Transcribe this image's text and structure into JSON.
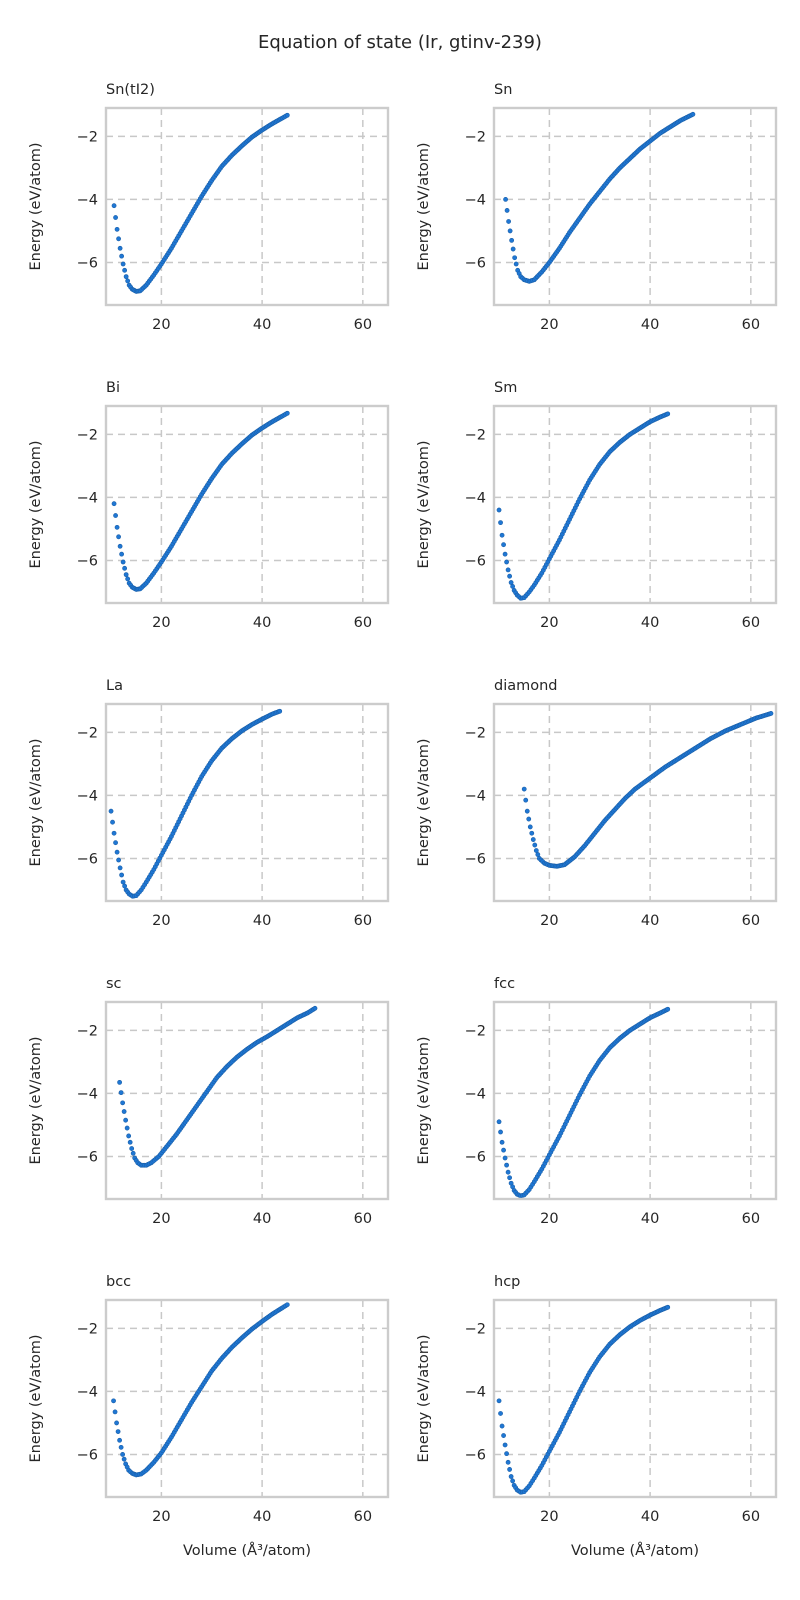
{
  "figure": {
    "suptitle": "Equation of state (Ir, gtinv-239)",
    "xlabel": "Volume (Å³/atom)",
    "ylabel": "Energy (eV/atom)"
  },
  "chart_data": [
    {
      "type": "scatter",
      "title": "Sn(tI2)",
      "xlim": [
        9,
        65
      ],
      "ylim": [
        -7.35,
        -1.1
      ],
      "xticks": [
        "20",
        "40",
        "60"
      ],
      "yticks": [
        "−6",
        "−4",
        "−2"
      ],
      "grid": true,
      "xlabel": "",
      "ylabel": "Energy (eV/atom)",
      "key_points": [
        [
          10.6,
          -4.2
        ],
        [
          11.2,
          -4.95
        ],
        [
          11.8,
          -5.55
        ],
        [
          12.4,
          -6.05
        ],
        [
          13.0,
          -6.45
        ],
        [
          13.6,
          -6.72
        ],
        [
          14.2,
          -6.85
        ],
        [
          15.0,
          -6.92
        ],
        [
          15.8,
          -6.9
        ],
        [
          17.0,
          -6.72
        ],
        [
          18.5,
          -6.4
        ],
        [
          20.0,
          -6.05
        ],
        [
          22.0,
          -5.55
        ],
        [
          24.0,
          -5.0
        ],
        [
          26.0,
          -4.45
        ],
        [
          28.0,
          -3.9
        ],
        [
          30.0,
          -3.4
        ],
        [
          32.0,
          -2.95
        ],
        [
          34.0,
          -2.6
        ],
        [
          36.0,
          -2.3
        ],
        [
          38.0,
          -2.02
        ],
        [
          40.0,
          -1.8
        ],
        [
          42.0,
          -1.6
        ],
        [
          44.0,
          -1.42
        ],
        [
          45.0,
          -1.33
        ]
      ]
    },
    {
      "type": "scatter",
      "title": "Sn",
      "xlim": [
        9,
        65
      ],
      "ylim": [
        -7.35,
        -1.1
      ],
      "xticks": [
        "20",
        "40",
        "60"
      ],
      "yticks": [
        "−6",
        "−4",
        "−2"
      ],
      "grid": true,
      "xlabel": "",
      "ylabel": "Energy (eV/atom)",
      "key_points": [
        [
          11.3,
          -4.0
        ],
        [
          11.9,
          -4.7
        ],
        [
          12.5,
          -5.3
        ],
        [
          13.1,
          -5.85
        ],
        [
          13.7,
          -6.25
        ],
        [
          14.3,
          -6.45
        ],
        [
          15.0,
          -6.55
        ],
        [
          16.0,
          -6.6
        ],
        [
          17.0,
          -6.55
        ],
        [
          18.5,
          -6.3
        ],
        [
          20.0,
          -6.0
        ],
        [
          22.0,
          -5.55
        ],
        [
          24.0,
          -5.05
        ],
        [
          26.0,
          -4.6
        ],
        [
          28.0,
          -4.15
        ],
        [
          30.0,
          -3.75
        ],
        [
          32.0,
          -3.35
        ],
        [
          34.0,
          -3.0
        ],
        [
          36.0,
          -2.7
        ],
        [
          38.0,
          -2.4
        ],
        [
          40.0,
          -2.15
        ],
        [
          42.0,
          -1.9
        ],
        [
          44.0,
          -1.7
        ],
        [
          46.0,
          -1.5
        ],
        [
          48.5,
          -1.3
        ]
      ]
    },
    {
      "type": "scatter",
      "title": "Bi",
      "xlim": [
        9,
        65
      ],
      "ylim": [
        -7.35,
        -1.1
      ],
      "xticks": [
        "20",
        "40",
        "60"
      ],
      "yticks": [
        "−6",
        "−4",
        "−2"
      ],
      "grid": true,
      "xlabel": "",
      "ylabel": "Energy (eV/atom)",
      "key_points": [
        [
          10.6,
          -4.2
        ],
        [
          11.2,
          -4.95
        ],
        [
          11.8,
          -5.55
        ],
        [
          12.4,
          -6.05
        ],
        [
          13.0,
          -6.45
        ],
        [
          13.6,
          -6.72
        ],
        [
          14.2,
          -6.85
        ],
        [
          15.0,
          -6.92
        ],
        [
          15.8,
          -6.9
        ],
        [
          17.0,
          -6.72
        ],
        [
          18.5,
          -6.4
        ],
        [
          20.0,
          -6.05
        ],
        [
          22.0,
          -5.55
        ],
        [
          24.0,
          -5.0
        ],
        [
          26.0,
          -4.45
        ],
        [
          28.0,
          -3.9
        ],
        [
          30.0,
          -3.4
        ],
        [
          32.0,
          -2.95
        ],
        [
          34.0,
          -2.6
        ],
        [
          36.0,
          -2.3
        ],
        [
          38.0,
          -2.02
        ],
        [
          40.0,
          -1.8
        ],
        [
          42.0,
          -1.6
        ],
        [
          44.0,
          -1.42
        ],
        [
          45.0,
          -1.33
        ]
      ]
    },
    {
      "type": "scatter",
      "title": "Sm",
      "xlim": [
        9,
        65
      ],
      "ylim": [
        -7.35,
        -1.1
      ],
      "xticks": [
        "20",
        "40",
        "60"
      ],
      "yticks": [
        "−6",
        "−4",
        "−2"
      ],
      "grid": true,
      "xlabel": "",
      "ylabel": "Energy (eV/atom)",
      "key_points": [
        [
          10.0,
          -4.4
        ],
        [
          10.6,
          -5.2
        ],
        [
          11.2,
          -5.8
        ],
        [
          11.8,
          -6.3
        ],
        [
          12.4,
          -6.7
        ],
        [
          13.0,
          -6.95
        ],
        [
          13.6,
          -7.1
        ],
        [
          14.3,
          -7.2
        ],
        [
          15.0,
          -7.18
        ],
        [
          16.0,
          -7.0
        ],
        [
          17.0,
          -6.78
        ],
        [
          18.5,
          -6.4
        ],
        [
          20.0,
          -5.95
        ],
        [
          22.0,
          -5.35
        ],
        [
          24.0,
          -4.7
        ],
        [
          26.0,
          -4.05
        ],
        [
          28.0,
          -3.45
        ],
        [
          30.0,
          -2.95
        ],
        [
          32.0,
          -2.55
        ],
        [
          34.0,
          -2.25
        ],
        [
          36.0,
          -2.0
        ],
        [
          38.0,
          -1.8
        ],
        [
          40.0,
          -1.6
        ],
        [
          42.0,
          -1.45
        ],
        [
          43.5,
          -1.35
        ]
      ]
    },
    {
      "type": "scatter",
      "title": "La",
      "xlim": [
        9,
        65
      ],
      "ylim": [
        -7.35,
        -1.1
      ],
      "xticks": [
        "20",
        "40",
        "60"
      ],
      "yticks": [
        "−6",
        "−4",
        "−2"
      ],
      "grid": true,
      "xlabel": "",
      "ylabel": "Energy (eV/atom)",
      "key_points": [
        [
          10.0,
          -4.5
        ],
        [
          10.6,
          -5.2
        ],
        [
          11.2,
          -5.8
        ],
        [
          11.8,
          -6.3
        ],
        [
          12.4,
          -6.75
        ],
        [
          13.0,
          -7.0
        ],
        [
          13.6,
          -7.13
        ],
        [
          14.3,
          -7.2
        ],
        [
          15.0,
          -7.18
        ],
        [
          16.0,
          -7.0
        ],
        [
          17.0,
          -6.75
        ],
        [
          18.5,
          -6.35
        ],
        [
          20.0,
          -5.9
        ],
        [
          22.0,
          -5.3
        ],
        [
          24.0,
          -4.65
        ],
        [
          26.0,
          -4.0
        ],
        [
          28.0,
          -3.4
        ],
        [
          30.0,
          -2.9
        ],
        [
          32.0,
          -2.5
        ],
        [
          34.0,
          -2.2
        ],
        [
          36.0,
          -1.95
        ],
        [
          38.0,
          -1.75
        ],
        [
          40.0,
          -1.58
        ],
        [
          42.0,
          -1.42
        ],
        [
          43.5,
          -1.33
        ]
      ]
    },
    {
      "type": "scatter",
      "title": "diamond",
      "xlim": [
        9,
        65
      ],
      "ylim": [
        -7.35,
        -1.1
      ],
      "xticks": [
        "20",
        "40",
        "60"
      ],
      "yticks": [
        "−6",
        "−4",
        "−2"
      ],
      "grid": true,
      "xlabel": "",
      "ylabel": "Energy (eV/atom)",
      "key_points": [
        [
          15.0,
          -3.8
        ],
        [
          15.6,
          -4.5
        ],
        [
          16.2,
          -5.0
        ],
        [
          16.8,
          -5.4
        ],
        [
          17.4,
          -5.75
        ],
        [
          18.0,
          -6.0
        ],
        [
          19.0,
          -6.15
        ],
        [
          20.0,
          -6.22
        ],
        [
          21.5,
          -6.25
        ],
        [
          23.0,
          -6.2
        ],
        [
          25.0,
          -5.95
        ],
        [
          27.0,
          -5.6
        ],
        [
          29.0,
          -5.2
        ],
        [
          31.0,
          -4.8
        ],
        [
          33.0,
          -4.45
        ],
        [
          35.0,
          -4.1
        ],
        [
          37.0,
          -3.8
        ],
        [
          40.0,
          -3.45
        ],
        [
          43.0,
          -3.1
        ],
        [
          46.0,
          -2.8
        ],
        [
          49.0,
          -2.5
        ],
        [
          52.0,
          -2.2
        ],
        [
          55.0,
          -1.95
        ],
        [
          58.0,
          -1.75
        ],
        [
          61.0,
          -1.55
        ],
        [
          64.0,
          -1.4
        ]
      ]
    },
    {
      "type": "scatter",
      "title": "sc",
      "xlim": [
        9,
        65
      ],
      "ylim": [
        -7.35,
        -1.1
      ],
      "xticks": [
        "20",
        "40",
        "60"
      ],
      "yticks": [
        "−6",
        "−4",
        "−2"
      ],
      "grid": true,
      "xlabel": "",
      "ylabel": "Energy (eV/atom)",
      "key_points": [
        [
          11.7,
          -3.65
        ],
        [
          12.3,
          -4.3
        ],
        [
          12.9,
          -4.85
        ],
        [
          13.5,
          -5.35
        ],
        [
          14.1,
          -5.75
        ],
        [
          14.7,
          -6.05
        ],
        [
          15.3,
          -6.2
        ],
        [
          16.0,
          -6.28
        ],
        [
          17.0,
          -6.28
        ],
        [
          18.0,
          -6.2
        ],
        [
          19.5,
          -6.0
        ],
        [
          21.0,
          -5.7
        ],
        [
          23.0,
          -5.3
        ],
        [
          25.0,
          -4.85
        ],
        [
          27.0,
          -4.4
        ],
        [
          29.0,
          -3.95
        ],
        [
          31.0,
          -3.5
        ],
        [
          33.0,
          -3.15
        ],
        [
          35.0,
          -2.85
        ],
        [
          37.0,
          -2.6
        ],
        [
          39.0,
          -2.38
        ],
        [
          41.0,
          -2.2
        ],
        [
          43.0,
          -2.0
        ],
        [
          45.0,
          -1.8
        ],
        [
          47.0,
          -1.6
        ],
        [
          49.0,
          -1.45
        ],
        [
          50.5,
          -1.3
        ]
      ]
    },
    {
      "type": "scatter",
      "title": "fcc",
      "xlim": [
        9,
        65
      ],
      "ylim": [
        -7.35,
        -1.1
      ],
      "xticks": [
        "20",
        "40",
        "60"
      ],
      "yticks": [
        "−6",
        "−4",
        "−2"
      ],
      "grid": true,
      "xlabel": "",
      "ylabel": "Energy (eV/atom)",
      "key_points": [
        [
          10.0,
          -4.9
        ],
        [
          10.6,
          -5.55
        ],
        [
          11.2,
          -6.05
        ],
        [
          11.8,
          -6.5
        ],
        [
          12.4,
          -6.85
        ],
        [
          13.0,
          -7.08
        ],
        [
          13.6,
          -7.2
        ],
        [
          14.3,
          -7.25
        ],
        [
          15.0,
          -7.22
        ],
        [
          16.0,
          -7.05
        ],
        [
          17.0,
          -6.8
        ],
        [
          18.5,
          -6.4
        ],
        [
          20.0,
          -5.95
        ],
        [
          22.0,
          -5.35
        ],
        [
          24.0,
          -4.7
        ],
        [
          26.0,
          -4.05
        ],
        [
          28.0,
          -3.45
        ],
        [
          30.0,
          -2.95
        ],
        [
          32.0,
          -2.55
        ],
        [
          34.0,
          -2.25
        ],
        [
          36.0,
          -2.0
        ],
        [
          38.0,
          -1.8
        ],
        [
          40.0,
          -1.6
        ],
        [
          42.0,
          -1.45
        ],
        [
          43.5,
          -1.33
        ]
      ]
    },
    {
      "type": "scatter",
      "title": "bcc",
      "xlim": [
        9,
        65
      ],
      "ylim": [
        -7.35,
        -1.1
      ],
      "xticks": [
        "20",
        "40",
        "60"
      ],
      "yticks": [
        "−6",
        "−4",
        "−2"
      ],
      "grid": true,
      "xlabel": "Volume (Å³/atom)",
      "ylabel": "Energy (eV/atom)",
      "key_points": [
        [
          10.5,
          -4.3
        ],
        [
          11.1,
          -5.0
        ],
        [
          11.7,
          -5.55
        ],
        [
          12.3,
          -6.0
        ],
        [
          12.9,
          -6.3
        ],
        [
          13.5,
          -6.5
        ],
        [
          14.2,
          -6.6
        ],
        [
          15.0,
          -6.65
        ],
        [
          16.0,
          -6.62
        ],
        [
          17.0,
          -6.5
        ],
        [
          18.5,
          -6.25
        ],
        [
          20.0,
          -5.95
        ],
        [
          22.0,
          -5.45
        ],
        [
          24.0,
          -4.9
        ],
        [
          26.0,
          -4.35
        ],
        [
          28.0,
          -3.85
        ],
        [
          30.0,
          -3.35
        ],
        [
          32.0,
          -2.95
        ],
        [
          34.0,
          -2.6
        ],
        [
          36.0,
          -2.3
        ],
        [
          38.0,
          -2.02
        ],
        [
          40.0,
          -1.78
        ],
        [
          42.0,
          -1.55
        ],
        [
          44.0,
          -1.35
        ],
        [
          45.0,
          -1.25
        ]
      ]
    },
    {
      "type": "scatter",
      "title": "hcp",
      "xlim": [
        9,
        65
      ],
      "ylim": [
        -7.35,
        -1.1
      ],
      "xticks": [
        "20",
        "40",
        "60"
      ],
      "yticks": [
        "−6",
        "−4",
        "−2"
      ],
      "grid": true,
      "xlabel": "Volume (Å³/atom)",
      "ylabel": "Energy (eV/atom)",
      "key_points": [
        [
          10.0,
          -4.3
        ],
        [
          10.6,
          -5.1
        ],
        [
          11.2,
          -5.7
        ],
        [
          11.8,
          -6.25
        ],
        [
          12.4,
          -6.7
        ],
        [
          13.0,
          -6.98
        ],
        [
          13.6,
          -7.13
        ],
        [
          14.3,
          -7.2
        ],
        [
          15.0,
          -7.18
        ],
        [
          16.0,
          -7.0
        ],
        [
          17.0,
          -6.75
        ],
        [
          18.5,
          -6.35
        ],
        [
          20.0,
          -5.9
        ],
        [
          22.0,
          -5.3
        ],
        [
          24.0,
          -4.65
        ],
        [
          26.0,
          -4.0
        ],
        [
          28.0,
          -3.4
        ],
        [
          30.0,
          -2.9
        ],
        [
          32.0,
          -2.5
        ],
        [
          34.0,
          -2.2
        ],
        [
          36.0,
          -1.95
        ],
        [
          38.0,
          -1.75
        ],
        [
          40.0,
          -1.58
        ],
        [
          42.0,
          -1.43
        ],
        [
          43.5,
          -1.33
        ]
      ]
    }
  ]
}
